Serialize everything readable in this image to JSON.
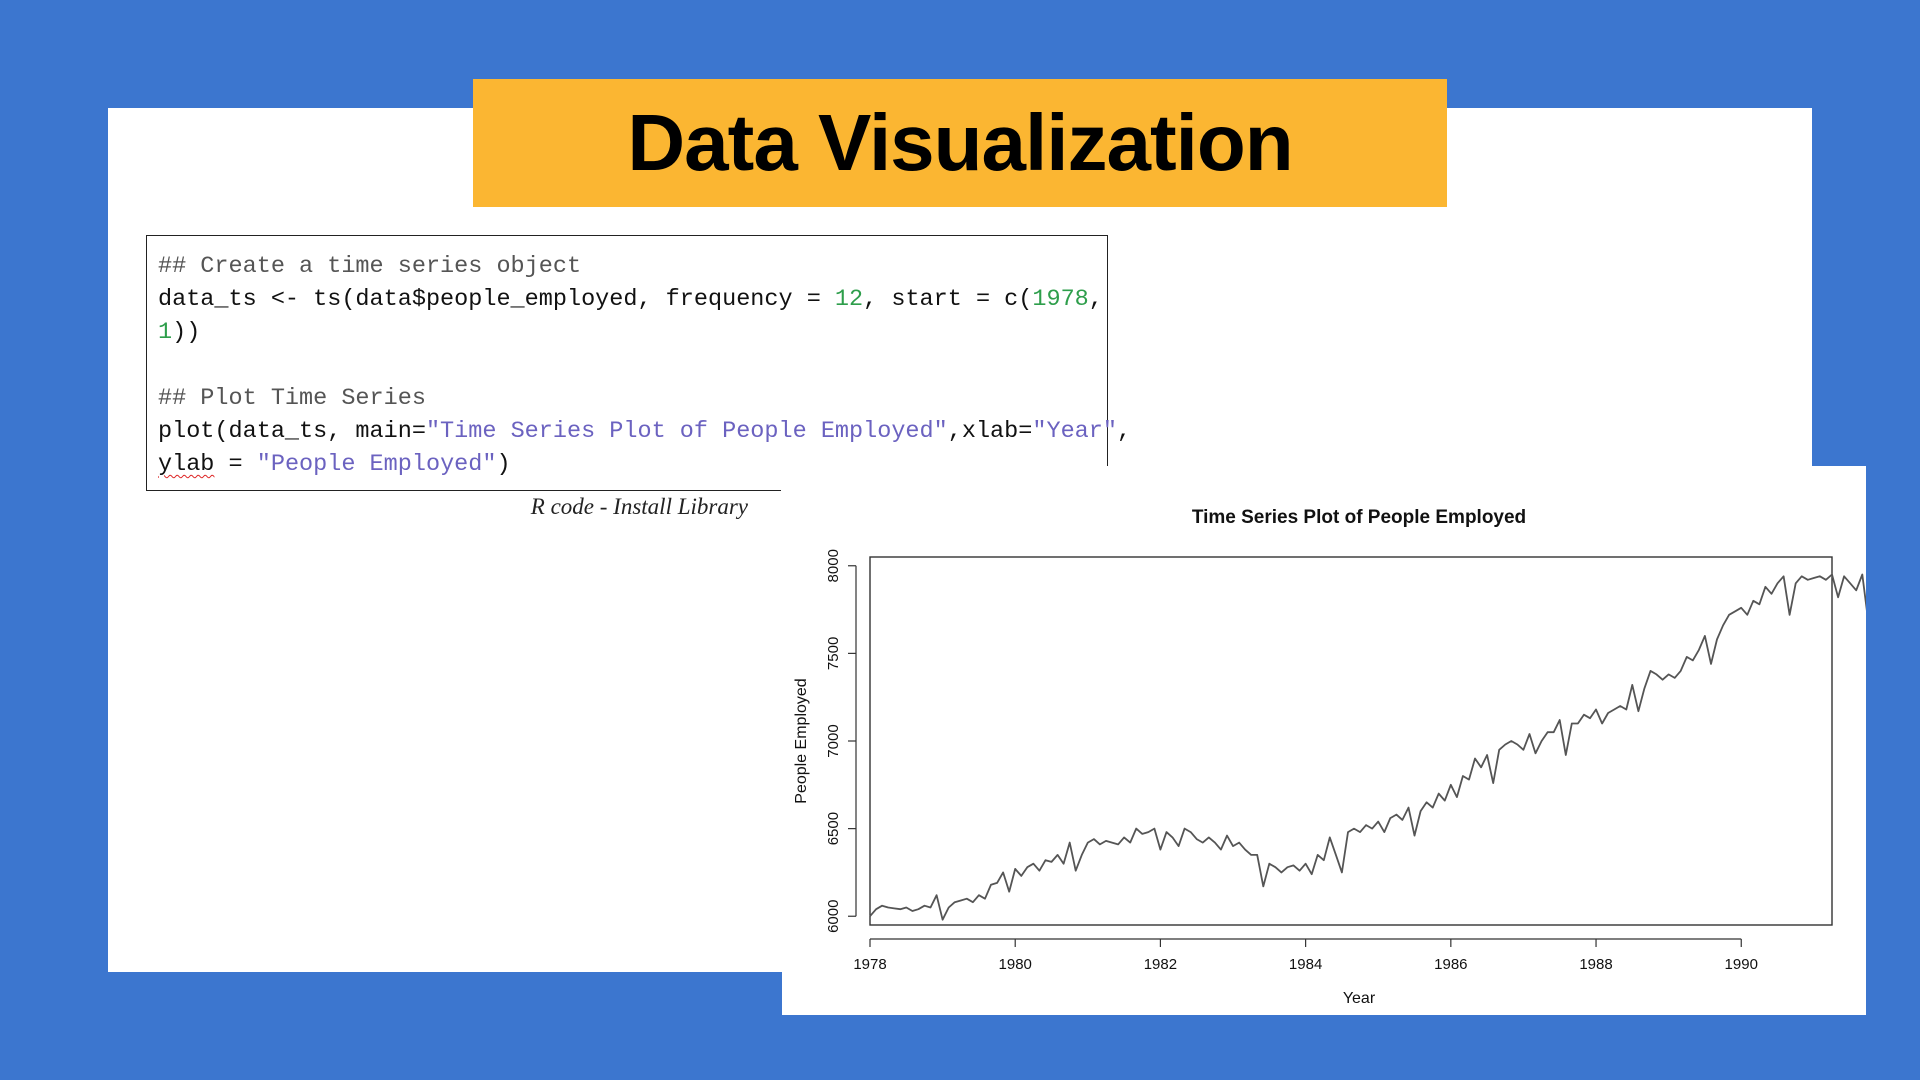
{
  "slide": {
    "title": "Data Visualization",
    "caption": "R code -  Install Library"
  },
  "code": {
    "line1": "## Create a time series object",
    "line2_a": "data_ts <- ts(data$people_employed, frequency = ",
    "line2_num1": "12",
    "line2_b": ", start = c(",
    "line2_num2": "1978",
    "line2_c": ",",
    "line3_num": "1",
    "line3_b": "))",
    "line5": "## Plot Time Series",
    "line6_a": "plot(data_ts, main=",
    "line6_str1": "\"Time Series Plot of People Employed\"",
    "line6_b": ",xlab=",
    "line6_str2": "\"Year\"",
    "line6_c": ",",
    "line7_a": "ylab",
    "line7_b": " = ",
    "line7_str": "\"People Employed\"",
    "line7_c": ")"
  },
  "colors": {
    "background": "#3c76cf",
    "banner": "#fbb632",
    "code_number": "#2e9e4b",
    "code_string": "#6b62c0",
    "series_line": "#555555"
  },
  "chart_data": {
    "type": "line",
    "title": "Time Series Plot of People Employed",
    "xlabel": "Year",
    "ylabel": "People Employed",
    "start": [
      1978,
      1
    ],
    "frequency": 12,
    "xlim": [
      1978,
      1991.25
    ],
    "ylim": [
      5950,
      8050
    ],
    "x_ticks": [
      1978,
      1980,
      1982,
      1984,
      1986,
      1988,
      1990
    ],
    "y_ticks": [
      6000,
      6500,
      7000,
      7500,
      8000
    ],
    "grid": false,
    "legend": "none",
    "series": [
      {
        "values": [
          6000,
          6040,
          6060,
          6050,
          6045,
          6040,
          6050,
          6030,
          6040,
          6060,
          6050,
          6120,
          5980,
          6050,
          6080,
          6090,
          6100,
          6080,
          6120,
          6100,
          6180,
          6190,
          6250,
          6140,
          6270,
          6230,
          6280,
          6300,
          6260,
          6320,
          6310,
          6350,
          6300,
          6420,
          6260,
          6350,
          6420,
          6440,
          6410,
          6430,
          6420,
          6410,
          6450,
          6420,
          6500,
          6470,
          6480,
          6500,
          6380,
          6480,
          6450,
          6400,
          6500,
          6480,
          6440,
          6420,
          6450,
          6420,
          6380,
          6460,
          6400,
          6420,
          6380,
          6350,
          6350,
          6170,
          6300,
          6280,
          6250,
          6280,
          6290,
          6260,
          6300,
          6240,
          6350,
          6320,
          6450,
          6350,
          6250,
          6480,
          6500,
          6480,
          6520,
          6500,
          6540,
          6480,
          6560,
          6580,
          6550,
          6620,
          6460,
          6600,
          6650,
          6620,
          6700,
          6660,
          6750,
          6680,
          6800,
          6780,
          6900,
          6850,
          6920,
          6760,
          6950,
          6980,
          7000,
          6980,
          6950,
          7040,
          6930,
          7000,
          7050,
          7050,
          7120,
          6920,
          7100,
          7100,
          7150,
          7130,
          7180,
          7100,
          7160,
          7180,
          7200,
          7180,
          7320,
          7170,
          7300,
          7400,
          7380,
          7350,
          7380,
          7360,
          7400,
          7480,
          7460,
          7520,
          7600,
          7440,
          7580,
          7660,
          7720,
          7740,
          7760,
          7720,
          7800,
          7780,
          7880,
          7840,
          7900,
          7940,
          7720,
          7900,
          7940,
          7920,
          7930,
          7940,
          7920,
          7950,
          7820,
          7940,
          7900,
          7860,
          7950,
          7680,
          7740,
          7750,
          7760
        ]
      }
    ]
  }
}
